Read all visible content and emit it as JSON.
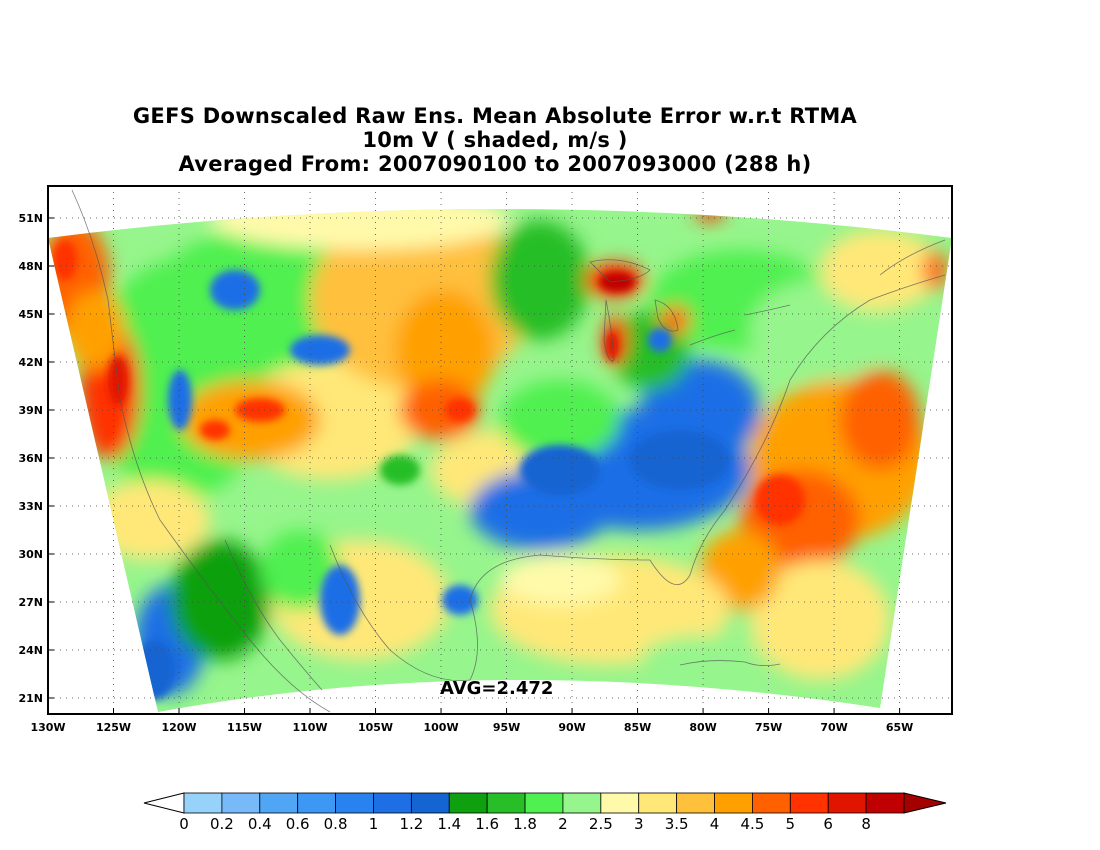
{
  "titles": {
    "line1": "GEFS Downscaled Raw Ens. Mean Absolute Error w.r.t RTMA",
    "line2": "10m V ( shaded, m/s )",
    "line3": "Averaged From: 2007090100 to 2007093000 (288 h)"
  },
  "map": {
    "lat_labels": [
      "51N",
      "48N",
      "45N",
      "42N",
      "39N",
      "36N",
      "33N",
      "30N",
      "27N",
      "24N",
      "21N"
    ],
    "lat_values": [
      51,
      48,
      45,
      42,
      39,
      36,
      33,
      30,
      27,
      24,
      21
    ],
    "lon_labels": [
      "130W",
      "125W",
      "120W",
      "115W",
      "110W",
      "105W",
      "100W",
      "95W",
      "90W",
      "85W",
      "80W",
      "75W",
      "70W",
      "65W"
    ],
    "lon_values": [
      -130,
      -125,
      -120,
      -115,
      -110,
      -105,
      -100,
      -95,
      -90,
      -85,
      -80,
      -75,
      -70,
      -65
    ],
    "lat_range": [
      20,
      53
    ],
    "lon_range": [
      -130,
      -61
    ],
    "grid": true,
    "grid_style": "dotted",
    "average_text": "AVG=2.472"
  },
  "colorbar": {
    "labels": [
      "0",
      "0.2",
      "0.4",
      "0.6",
      "0.8",
      "1",
      "1.2",
      "1.4",
      "1.6",
      "1.8",
      "2",
      "2.5",
      "3",
      "3.5",
      "4",
      "4.5",
      "5",
      "6",
      "8"
    ],
    "colors": [
      "#96d2fa",
      "#78b9fa",
      "#50a5f5",
      "#3c97f5",
      "#2882f0",
      "#1e6ee6",
      "#1464d2",
      "#0fa00f",
      "#28be28",
      "#50f050",
      "#96f58c",
      "#fffaaa",
      "#ffe878",
      "#ffc03c",
      "#ffa000",
      "#ff6000",
      "#ff3200",
      "#e11400",
      "#c00000"
    ],
    "under_color": "#ffffff",
    "over_color": "#a50000"
  }
}
